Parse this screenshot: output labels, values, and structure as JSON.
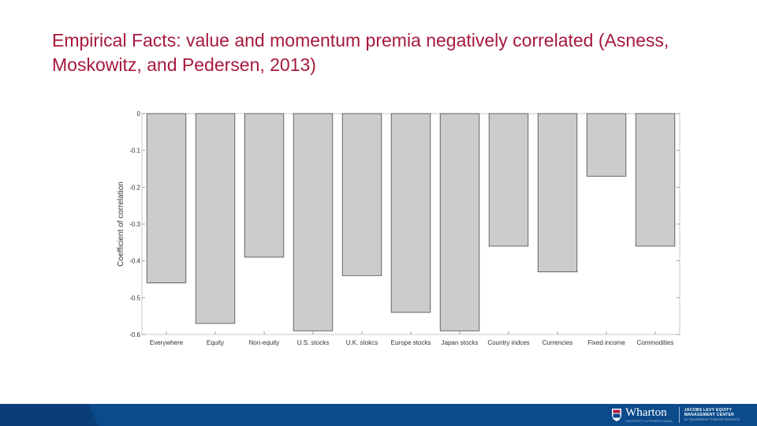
{
  "slide": {
    "title": "Empirical Facts: value and momentum premia negatively correlated (Asness, Moskowitz, and Pedersen, 2013)"
  },
  "chart_data": {
    "type": "bar",
    "title": "",
    "xlabel": "",
    "ylabel": "Coefficient of correlation",
    "categories": [
      "Everywhere",
      "Equity",
      "Non-equity",
      "U.S. stocks",
      "U.K. stokcs",
      "Europe stocks",
      "Japan stocks",
      "Country indces",
      "Currencies",
      "Fixed income",
      "Commodities"
    ],
    "values": [
      -0.46,
      -0.57,
      -0.39,
      -0.59,
      -0.44,
      -0.54,
      -0.59,
      -0.36,
      -0.43,
      -0.17,
      -0.36
    ],
    "ylim": [
      -0.6,
      0
    ],
    "yticks": [
      "0",
      "-0.1",
      "-0.2",
      "-0.3",
      "-0.4",
      "-0.5",
      "-0.6"
    ],
    "bar_color": "#cccccc",
    "grid": false,
    "legend": "none"
  },
  "footer": {
    "bar_color": "#0b4a8b",
    "logo": {
      "brand": "Wharton",
      "university": "UNIVERSITY of PENNSYLVANIA",
      "center_line1": "JACOBS LEVY EQUITY",
      "center_line2": "MANAGEMENT CENTER",
      "center_line3": "for Quantitative Financial Research"
    }
  }
}
